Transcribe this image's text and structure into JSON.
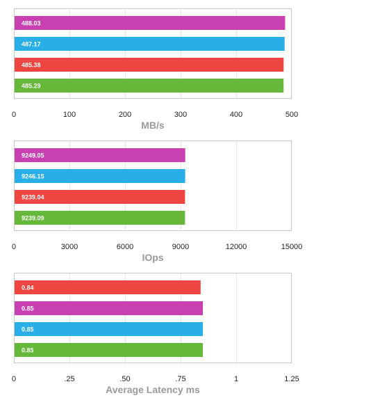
{
  "chart_data": [
    {
      "type": "bar",
      "orientation": "horizontal",
      "xlabel": "MB/s",
      "xlim": [
        0,
        500
      ],
      "ticks": [
        0,
        100,
        200,
        300,
        400,
        500
      ],
      "tick_labels": [
        "0",
        "100",
        "200",
        "300",
        "400",
        "500"
      ],
      "grid": true,
      "bars": [
        {
          "value": 488.03,
          "label": "488.03",
          "color": "#c940b3"
        },
        {
          "value": 487.17,
          "label": "487.17",
          "color": "#2aaee8"
        },
        {
          "value": 485.38,
          "label": "485.38",
          "color": "#ee4540"
        },
        {
          "value": 485.29,
          "label": "485.29",
          "color": "#66b83a"
        }
      ]
    },
    {
      "type": "bar",
      "orientation": "horizontal",
      "xlabel": "IOps",
      "xlim": [
        0,
        15000
      ],
      "ticks": [
        0,
        3000,
        6000,
        9000,
        12000,
        15000
      ],
      "tick_labels": [
        "0",
        "3000",
        "6000",
        "9000",
        "12000",
        "15000"
      ],
      "grid": true,
      "bars": [
        {
          "value": 9249.05,
          "label": "9249.05",
          "color": "#c940b3"
        },
        {
          "value": 9246.15,
          "label": "9246.15",
          "color": "#2aaee8"
        },
        {
          "value": 9239.04,
          "label": "9239.04",
          "color": "#ee4540"
        },
        {
          "value": 9239.09,
          "label": "9239.09",
          "color": "#66b83a"
        }
      ]
    },
    {
      "type": "bar",
      "orientation": "horizontal",
      "xlabel": "Average Latency ms",
      "xlim": [
        0,
        1.25
      ],
      "ticks": [
        0,
        0.25,
        0.5,
        0.75,
        1,
        1.25
      ],
      "tick_labels": [
        "0",
        ".25",
        ".50",
        ".75",
        "1",
        "1.25"
      ],
      "grid": true,
      "bars": [
        {
          "value": 0.84,
          "label": "0.84",
          "color": "#ee4540"
        },
        {
          "value": 0.85,
          "label": "0.85",
          "color": "#c940b3"
        },
        {
          "value": 0.85,
          "label": "0.85",
          "color": "#2aaee8"
        },
        {
          "value": 0.85,
          "label": "0.85",
          "color": "#66b83a"
        }
      ]
    }
  ]
}
